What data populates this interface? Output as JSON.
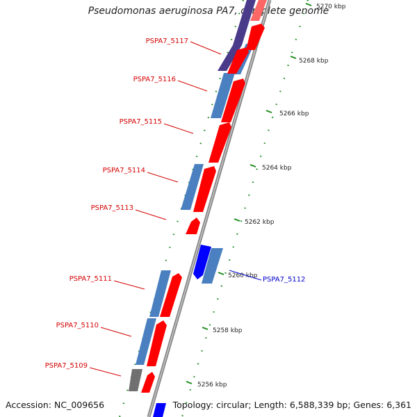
{
  "title": "Pseudomonas aeruginosa PA7, complete genome",
  "footer": {
    "accession": "Accession: NC_009656",
    "topology": "Topology: circular; Length: 6,588,339 bp; Genes: 6,361"
  },
  "colors": {
    "gene_label_forward": "#d40000",
    "gene_label_reverse": "#0000cc",
    "cds_forward": "#ff0000",
    "cds_reverse": "#0000ff",
    "cog_steelblue": "#4a80c0",
    "cog_purple": "#4a3a8a",
    "cog_gray": "#707070",
    "backbone": "#8a8a8a",
    "ruler": "#1a8a1a"
  },
  "ruler": {
    "ticks": [
      {
        "label": "5256 kbp"
      },
      {
        "label": "5258 kbp"
      },
      {
        "label": "5260 kbp"
      },
      {
        "label": "5262 kbp"
      },
      {
        "label": "5264 kbp"
      },
      {
        "label": "5266 kbp"
      },
      {
        "label": "5268 kbp"
      },
      {
        "label": "5270 kbp"
      }
    ]
  },
  "genes": [
    {
      "id": "PSPA7_5117",
      "strand": "forward"
    },
    {
      "id": "PSPA7_5116",
      "strand": "forward"
    },
    {
      "id": "PSPA7_5115",
      "strand": "forward"
    },
    {
      "id": "PSPA7_5114",
      "strand": "forward"
    },
    {
      "id": "PSPA7_5113",
      "strand": "forward"
    },
    {
      "id": "PSPA7_5112",
      "strand": "reverse"
    },
    {
      "id": "PSPA7_5111",
      "strand": "forward"
    },
    {
      "id": "PSPA7_5110",
      "strand": "forward"
    },
    {
      "id": "PSPA7_5109",
      "strand": "forward"
    }
  ]
}
